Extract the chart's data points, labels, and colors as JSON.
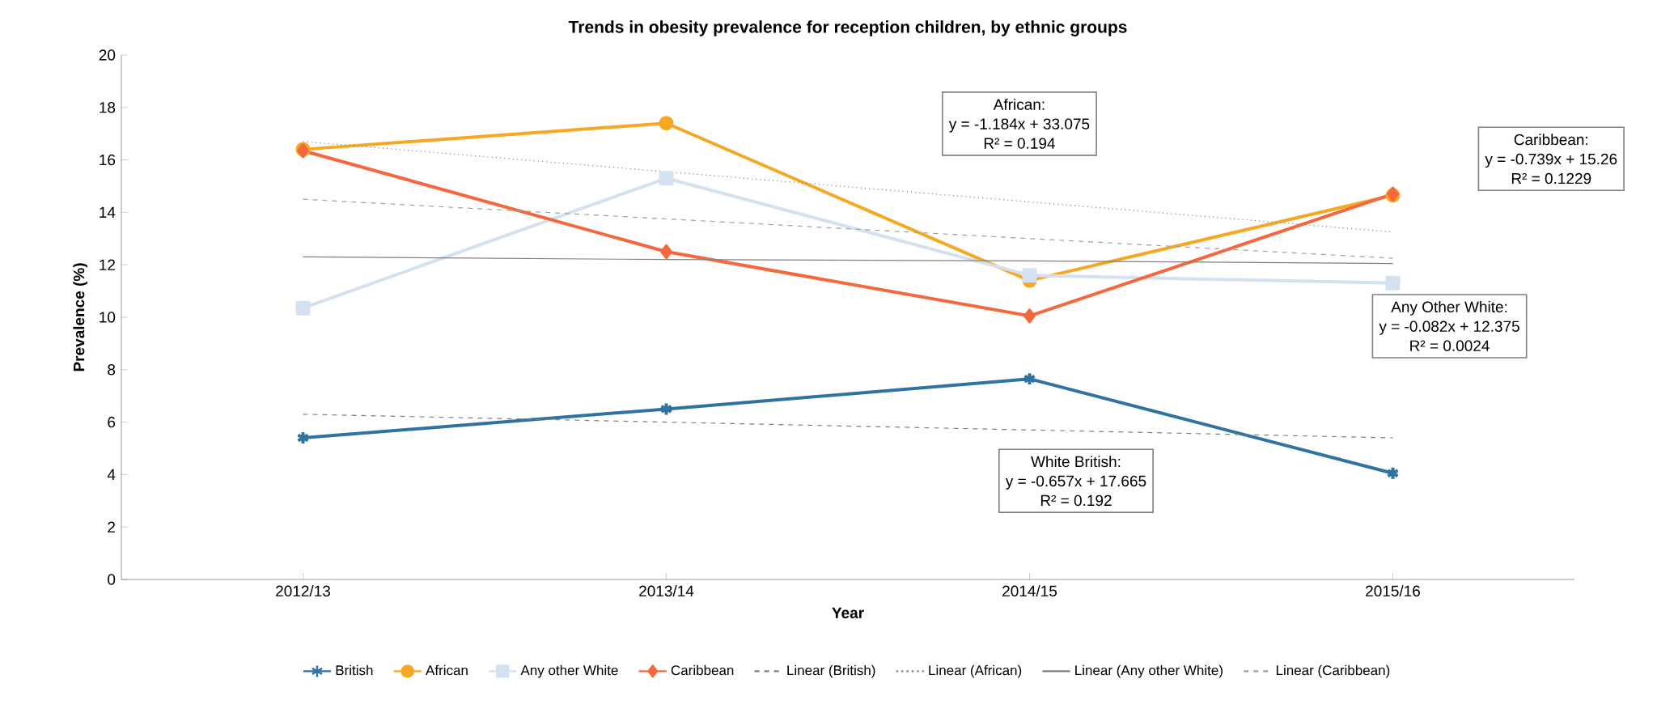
{
  "chart_data": {
    "type": "line",
    "title": "Trends in obesity prevalence for reception children, by ethnic groups",
    "xlabel": "Year",
    "ylabel": "Prevalence (%)",
    "categories": [
      "2012/13",
      "2013/14",
      "2014/15",
      "2015/16"
    ],
    "ylim": [
      0,
      20
    ],
    "yticks": [
      0,
      2,
      4,
      6,
      8,
      10,
      12,
      14,
      16,
      18,
      20
    ],
    "grid": false,
    "legend": "bottom",
    "series": [
      {
        "name": "British",
        "color": "#2f73a0",
        "values": [
          5.4,
          6.5,
          7.65,
          4.05
        ],
        "marker": "cross",
        "line_style": "solid"
      },
      {
        "name": "African",
        "color": "#f7a823",
        "values": [
          16.4,
          17.4,
          11.4,
          14.65
        ],
        "marker": "circle",
        "line_style": "solid"
      },
      {
        "name": "Any other White",
        "color": "#d3e1f0",
        "values": [
          10.35,
          15.3,
          11.6,
          11.3
        ],
        "marker": "square",
        "line_style": "solid"
      },
      {
        "name": "Caribbean",
        "color": "#f5683e",
        "values": [
          16.35,
          12.5,
          10.05,
          14.7
        ],
        "marker": "diamond",
        "line_style": "solid"
      },
      {
        "name": "Linear (British)",
        "color": "#808080",
        "values": [
          6.3,
          6.0,
          5.7,
          5.4
        ],
        "marker": "none",
        "line_style": "dashed"
      },
      {
        "name": "Linear (African)",
        "color": "#808080",
        "values": [
          16.7,
          15.55,
          14.4,
          13.25
        ],
        "marker": "none",
        "line_style": "dotted"
      },
      {
        "name": "Linear (Any other White)",
        "color": "#808080",
        "values": [
          12.3,
          12.2,
          12.15,
          12.05
        ],
        "marker": "none",
        "line_style": "solid"
      },
      {
        "name": "Linear (Caribbean)",
        "color": "#a0a0a0",
        "values": [
          14.5,
          13.75,
          13.0,
          12.25
        ],
        "marker": "none",
        "line_style": "dashed"
      }
    ],
    "annotations": [
      "African:",
      "y = -1.184x + 33.075",
      "R² = 0.194",
      "Caribbean:",
      "y = -0.739x + 15.26",
      "R² = 0.1229",
      "Any Other White:",
      "y = -0.082x + 12.375",
      "R² = 0.0024",
      "White British:",
      "y = -0.657x + 17.665",
      "R² = 0.192"
    ]
  }
}
